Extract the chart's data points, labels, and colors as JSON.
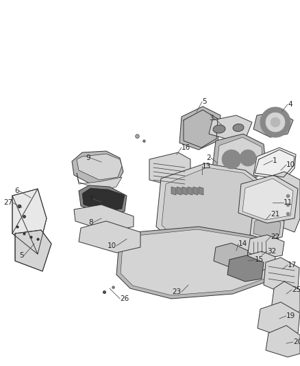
{
  "bg_color": "#ffffff",
  "fig_width": 4.38,
  "fig_height": 5.33,
  "dpi": 100,
  "label_fontsize": 7.5,
  "label_color": "#222222",
  "line_color": "#444444",
  "fill_light": "#d4d4d4",
  "fill_mid": "#b8b8b8",
  "fill_dark": "#888888",
  "fill_black": "#303030",
  "edge_color": "#333333",
  "lw": 0.7
}
